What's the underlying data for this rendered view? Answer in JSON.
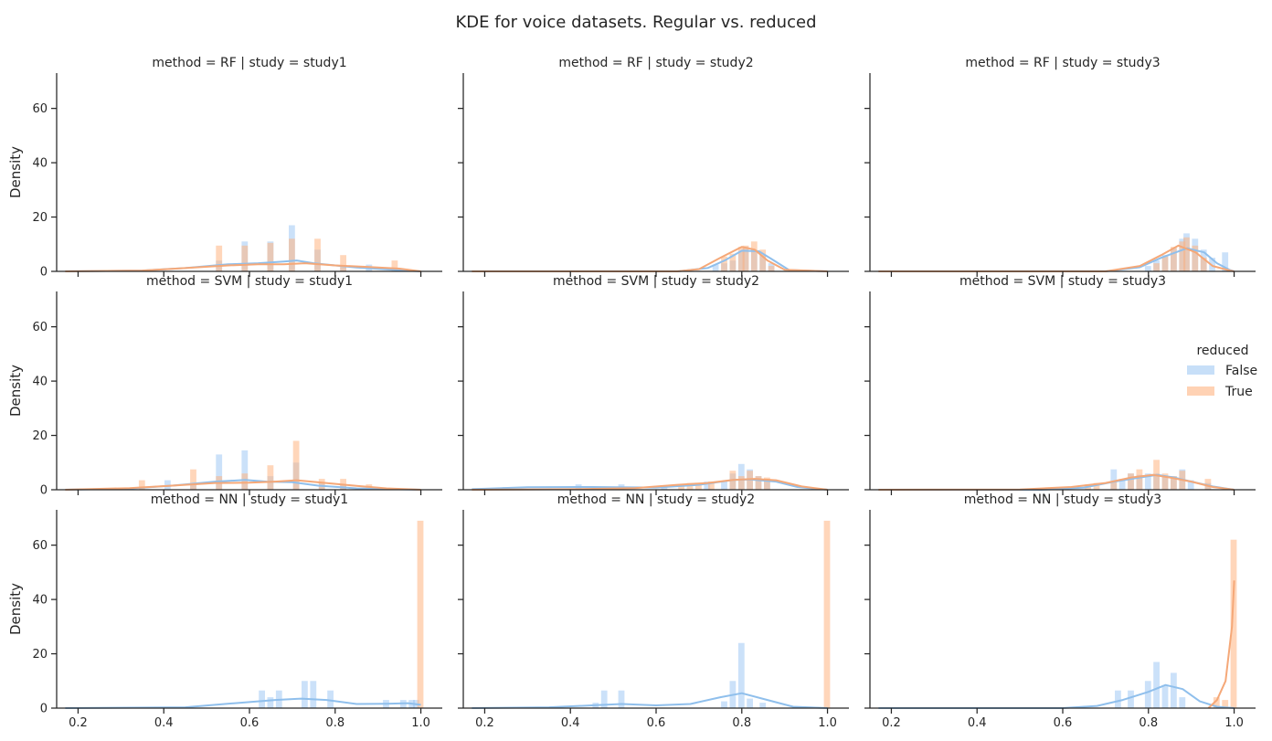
{
  "chart_data": {
    "type": "histogram-kde-grid",
    "title": "KDE for voice datasets. Regular vs. reduced",
    "ylabel": "Density",
    "xlabel": "",
    "xlim": [
      0.15,
      1.05
    ],
    "ylim": [
      0,
      73
    ],
    "xticks": [
      0.2,
      0.4,
      0.6,
      0.8,
      1.0
    ],
    "xtick_labels": [
      "0.2",
      "0.4",
      "0.6",
      "0.8",
      "1.0"
    ],
    "yticks": [
      0,
      20,
      40,
      60
    ],
    "ytick_labels": [
      "0",
      "20",
      "40",
      "60"
    ],
    "bin_width": 0.0167,
    "grid": false,
    "legend": {
      "title": "reduced",
      "placement": "center-right",
      "entries": [
        {
          "label": "False",
          "color": "#a1c9f4"
        },
        {
          "label": "True",
          "color": "#ffb482"
        }
      ]
    },
    "panels": [
      {
        "title": "method = RF | study = study1",
        "false_bars": [
          [
            0.53,
            4
          ],
          [
            0.59,
            11
          ],
          [
            0.65,
            11
          ],
          [
            0.7,
            17
          ],
          [
            0.76,
            8
          ],
          [
            0.82,
            2
          ],
          [
            0.88,
            2.5
          ]
        ],
        "true_bars": [
          [
            0.53,
            9.5
          ],
          [
            0.59,
            9.5
          ],
          [
            0.65,
            10.5
          ],
          [
            0.7,
            12
          ],
          [
            0.76,
            12
          ],
          [
            0.82,
            6
          ],
          [
            0.94,
            4
          ]
        ],
        "false_kde": [
          [
            0.17,
            0
          ],
          [
            0.35,
            0.3
          ],
          [
            0.45,
            1.2
          ],
          [
            0.55,
            2.6
          ],
          [
            0.62,
            3
          ],
          [
            0.68,
            3.6
          ],
          [
            0.71,
            4
          ],
          [
            0.75,
            3
          ],
          [
            0.85,
            1.4
          ],
          [
            0.95,
            0.4
          ],
          [
            1.0,
            0
          ]
        ],
        "true_kde": [
          [
            0.17,
            0
          ],
          [
            0.35,
            0.3
          ],
          [
            0.45,
            1.2
          ],
          [
            0.55,
            2.2
          ],
          [
            0.62,
            2.6
          ],
          [
            0.68,
            2.6
          ],
          [
            0.73,
            3
          ],
          [
            0.8,
            2.2
          ],
          [
            0.88,
            1.6
          ],
          [
            0.95,
            1
          ],
          [
            1.0,
            0
          ]
        ]
      },
      {
        "title": "method = RF | study = study2",
        "false_bars": [
          [
            0.74,
            2.5
          ],
          [
            0.76,
            3
          ],
          [
            0.78,
            4
          ],
          [
            0.8,
            7.5
          ],
          [
            0.81,
            9
          ],
          [
            0.83,
            8
          ],
          [
            0.85,
            6
          ],
          [
            0.87,
            3
          ]
        ],
        "true_bars": [
          [
            0.76,
            5.5
          ],
          [
            0.78,
            6.5
          ],
          [
            0.8,
            9
          ],
          [
            0.81,
            9.5
          ],
          [
            0.83,
            11
          ],
          [
            0.85,
            8
          ],
          [
            0.87,
            2
          ]
        ],
        "false_kde": [
          [
            0.17,
            0
          ],
          [
            0.65,
            0
          ],
          [
            0.72,
            1.2
          ],
          [
            0.76,
            4
          ],
          [
            0.8,
            7.6
          ],
          [
            0.84,
            7.4
          ],
          [
            0.87,
            4.5
          ],
          [
            0.91,
            0.5
          ],
          [
            1.0,
            0
          ]
        ],
        "true_kde": [
          [
            0.17,
            0
          ],
          [
            0.65,
            0
          ],
          [
            0.7,
            0.8
          ],
          [
            0.75,
            5
          ],
          [
            0.8,
            9
          ],
          [
            0.83,
            8
          ],
          [
            0.86,
            4
          ],
          [
            0.9,
            0.6
          ],
          [
            1.0,
            0
          ]
        ]
      },
      {
        "title": "method = RF | study = study3",
        "false_bars": [
          [
            0.8,
            2
          ],
          [
            0.82,
            4
          ],
          [
            0.84,
            6
          ],
          [
            0.86,
            8.5
          ],
          [
            0.88,
            12
          ],
          [
            0.89,
            14
          ],
          [
            0.91,
            12
          ],
          [
            0.93,
            8
          ],
          [
            0.95,
            5
          ],
          [
            0.98,
            7
          ]
        ],
        "true_bars": [
          [
            0.82,
            3
          ],
          [
            0.84,
            5.5
          ],
          [
            0.86,
            9
          ],
          [
            0.88,
            11
          ],
          [
            0.89,
            12.5
          ],
          [
            0.91,
            9.5
          ],
          [
            0.93,
            5
          ]
        ],
        "false_kde": [
          [
            0.17,
            0
          ],
          [
            0.7,
            0
          ],
          [
            0.78,
            1.5
          ],
          [
            0.83,
            5
          ],
          [
            0.89,
            8.5
          ],
          [
            0.93,
            7
          ],
          [
            0.96,
            3
          ],
          [
            0.99,
            0.5
          ],
          [
            1.0,
            0
          ]
        ],
        "true_kde": [
          [
            0.17,
            0
          ],
          [
            0.7,
            0
          ],
          [
            0.78,
            2
          ],
          [
            0.83,
            6
          ],
          [
            0.87,
            9.5
          ],
          [
            0.91,
            7
          ],
          [
            0.95,
            2
          ],
          [
            0.99,
            0.3
          ],
          [
            1.0,
            0
          ]
        ]
      },
      {
        "title": "method = SVM | study = study1",
        "false_bars": [
          [
            0.41,
            3.5
          ],
          [
            0.47,
            2.5
          ],
          [
            0.53,
            13
          ],
          [
            0.59,
            14.5
          ],
          [
            0.65,
            5
          ],
          [
            0.71,
            10
          ],
          [
            0.77,
            2.5
          ],
          [
            0.82,
            2
          ]
        ],
        "true_bars": [
          [
            0.35,
            3.5
          ],
          [
            0.47,
            7.5
          ],
          [
            0.53,
            5
          ],
          [
            0.59,
            6
          ],
          [
            0.65,
            9
          ],
          [
            0.71,
            18
          ],
          [
            0.77,
            4
          ],
          [
            0.82,
            4
          ],
          [
            0.88,
            2
          ]
        ],
        "false_kde": [
          [
            0.17,
            0
          ],
          [
            0.32,
            0.4
          ],
          [
            0.42,
            1.5
          ],
          [
            0.52,
            3
          ],
          [
            0.59,
            3.6
          ],
          [
            0.64,
            3
          ],
          [
            0.7,
            2.8
          ],
          [
            0.76,
            1.5
          ],
          [
            0.85,
            0.5
          ],
          [
            1.0,
            0
          ]
        ],
        "true_kde": [
          [
            0.17,
            0
          ],
          [
            0.32,
            0.6
          ],
          [
            0.42,
            1.5
          ],
          [
            0.52,
            2.5
          ],
          [
            0.6,
            2.6
          ],
          [
            0.66,
            3
          ],
          [
            0.71,
            3.5
          ],
          [
            0.77,
            2.6
          ],
          [
            0.85,
            1.4
          ],
          [
            0.92,
            0.5
          ],
          [
            1.0,
            0
          ]
        ]
      },
      {
        "title": "method = SVM | study = study2",
        "false_bars": [
          [
            0.25,
            1
          ],
          [
            0.42,
            2
          ],
          [
            0.52,
            2
          ],
          [
            0.62,
            1
          ],
          [
            0.72,
            3
          ],
          [
            0.76,
            3
          ],
          [
            0.78,
            6
          ],
          [
            0.8,
            9.5
          ],
          [
            0.82,
            7.5
          ],
          [
            0.84,
            5
          ],
          [
            0.86,
            4
          ]
        ],
        "true_bars": [
          [
            0.66,
            2
          ],
          [
            0.68,
            2.5
          ],
          [
            0.7,
            2.5
          ],
          [
            0.73,
            3
          ],
          [
            0.78,
            7
          ],
          [
            0.8,
            5
          ],
          [
            0.82,
            7
          ],
          [
            0.84,
            5
          ],
          [
            0.86,
            4.5
          ]
        ],
        "false_kde": [
          [
            0.17,
            0.2
          ],
          [
            0.3,
            0.9
          ],
          [
            0.45,
            1
          ],
          [
            0.6,
            0.8
          ],
          [
            0.7,
            1.8
          ],
          [
            0.78,
            3.6
          ],
          [
            0.82,
            3.8
          ],
          [
            0.88,
            3
          ],
          [
            0.93,
            1
          ],
          [
            1.0,
            0
          ]
        ],
        "true_kde": [
          [
            0.17,
            0
          ],
          [
            0.4,
            0.2
          ],
          [
            0.55,
            0.6
          ],
          [
            0.65,
            1.8
          ],
          [
            0.72,
            2.5
          ],
          [
            0.78,
            3.6
          ],
          [
            0.83,
            4
          ],
          [
            0.88,
            3.5
          ],
          [
            0.94,
            1.2
          ],
          [
            1.0,
            0
          ]
        ]
      },
      {
        "title": "method = SVM | study = study3",
        "false_bars": [
          [
            0.72,
            7.5
          ],
          [
            0.74,
            4
          ],
          [
            0.76,
            6
          ],
          [
            0.78,
            5.5
          ],
          [
            0.8,
            6
          ],
          [
            0.82,
            6
          ],
          [
            0.84,
            5
          ],
          [
            0.86,
            5
          ],
          [
            0.88,
            7.5
          ],
          [
            0.9,
            3.5
          ],
          [
            0.94,
            2.5
          ]
        ],
        "true_bars": [
          [
            0.66,
            2
          ],
          [
            0.68,
            2.5
          ],
          [
            0.72,
            3
          ],
          [
            0.76,
            6
          ],
          [
            0.78,
            7.5
          ],
          [
            0.82,
            11
          ],
          [
            0.84,
            6
          ],
          [
            0.86,
            5
          ],
          [
            0.88,
            7
          ],
          [
            0.94,
            4
          ]
        ],
        "false_kde": [
          [
            0.17,
            0
          ],
          [
            0.55,
            0
          ],
          [
            0.65,
            0.8
          ],
          [
            0.72,
            3
          ],
          [
            0.78,
            4.5
          ],
          [
            0.82,
            5.5
          ],
          [
            0.86,
            4.5
          ],
          [
            0.9,
            3
          ],
          [
            0.95,
            1.2
          ],
          [
            1.0,
            0
          ]
        ],
        "true_kde": [
          [
            0.17,
            0
          ],
          [
            0.5,
            0.1
          ],
          [
            0.62,
            1
          ],
          [
            0.7,
            2.5
          ],
          [
            0.76,
            4.5
          ],
          [
            0.81,
            5.5
          ],
          [
            0.85,
            4.5
          ],
          [
            0.9,
            3
          ],
          [
            0.95,
            1
          ],
          [
            1.0,
            0
          ]
        ]
      },
      {
        "title": "method = NN | study = study1",
        "false_bars": [
          [
            0.63,
            6.5
          ],
          [
            0.65,
            4
          ],
          [
            0.67,
            6.5
          ],
          [
            0.73,
            10
          ],
          [
            0.75,
            10
          ],
          [
            0.79,
            6.5
          ],
          [
            0.92,
            3
          ],
          [
            0.96,
            3
          ],
          [
            0.98,
            3
          ],
          [
            0.99,
            3
          ]
        ],
        "true_bars": [
          [
            1.0,
            69
          ]
        ],
        "false_kde": [
          [
            0.17,
            0
          ],
          [
            0.45,
            0.3
          ],
          [
            0.58,
            2
          ],
          [
            0.66,
            3
          ],
          [
            0.72,
            3.5
          ],
          [
            0.78,
            3
          ],
          [
            0.85,
            1.5
          ],
          [
            0.92,
            1.6
          ],
          [
            0.97,
            1.8
          ],
          [
            1.0,
            1.2
          ]
        ],
        "true_kde": []
      },
      {
        "title": "method = NN | study = study2",
        "false_bars": [
          [
            0.46,
            2
          ],
          [
            0.48,
            6.5
          ],
          [
            0.52,
            6.5
          ],
          [
            0.76,
            2.5
          ],
          [
            0.78,
            10
          ],
          [
            0.8,
            24
          ],
          [
            0.82,
            3.5
          ],
          [
            0.85,
            2
          ]
        ],
        "true_bars": [
          [
            1.0,
            69
          ]
        ],
        "false_kde": [
          [
            0.17,
            0
          ],
          [
            0.35,
            0.3
          ],
          [
            0.45,
            1
          ],
          [
            0.52,
            1.5
          ],
          [
            0.6,
            1
          ],
          [
            0.68,
            1.5
          ],
          [
            0.75,
            4
          ],
          [
            0.8,
            5.5
          ],
          [
            0.86,
            3
          ],
          [
            0.92,
            0.5
          ],
          [
            1.0,
            0
          ]
        ],
        "true_kde": []
      },
      {
        "title": "method = NN | study = study3",
        "false_bars": [
          [
            0.73,
            6.5
          ],
          [
            0.76,
            6.5
          ],
          [
            0.8,
            10
          ],
          [
            0.82,
            17
          ],
          [
            0.84,
            8.5
          ],
          [
            0.86,
            13
          ],
          [
            0.88,
            4
          ]
        ],
        "true_bars": [
          [
            0.96,
            4
          ],
          [
            0.98,
            3
          ],
          [
            1.0,
            62
          ]
        ],
        "false_kde": [
          [
            0.17,
            0
          ],
          [
            0.6,
            0
          ],
          [
            0.68,
            0.8
          ],
          [
            0.74,
            3
          ],
          [
            0.8,
            6
          ],
          [
            0.84,
            8.5
          ],
          [
            0.88,
            7
          ],
          [
            0.92,
            2.5
          ],
          [
            0.96,
            0.5
          ],
          [
            1.0,
            0
          ]
        ],
        "true_kde": [
          [
            0.94,
            0
          ],
          [
            0.96,
            3
          ],
          [
            0.98,
            10
          ],
          [
            0.995,
            30
          ],
          [
            1.0,
            47
          ]
        ]
      }
    ]
  }
}
